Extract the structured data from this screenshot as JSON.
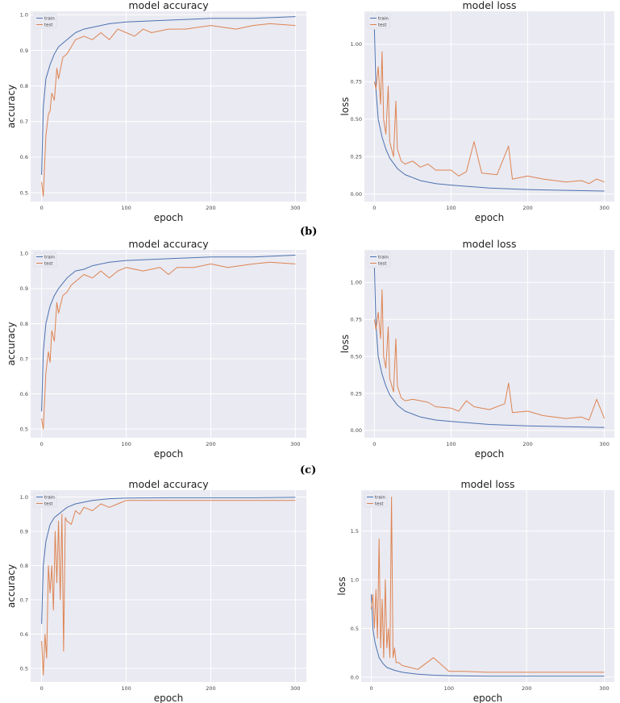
{
  "captions": {
    "b": "(b)",
    "c": "(c)"
  },
  "colors": {
    "train": "#4c72b0",
    "test": "#dd8452",
    "plot_bg": "#eaeaf2",
    "grid": "#ffffff"
  },
  "chart_data": [
    {
      "id": "a-accuracy",
      "type": "line",
      "title": "model accuracy",
      "xlabel": "epoch",
      "ylabel": "accuracy",
      "xlim": [
        -13,
        313
      ],
      "ylim": [
        0.475,
        1.01
      ],
      "xticks": [
        0,
        100,
        200,
        300
      ],
      "xtick_labels": [
        "0",
        "100",
        "200",
        "300"
      ],
      "yticks": [
        0.5,
        0.6,
        0.7,
        0.8,
        0.9,
        1.0
      ],
      "ytick_labels": [
        "0.5",
        "0.6",
        "0.7",
        "0.8",
        "0.9",
        "1.0"
      ],
      "legend": "upper-left",
      "grid": true,
      "series": [
        {
          "name": "train",
          "x": [
            0,
            2,
            5,
            10,
            15,
            20,
            30,
            40,
            50,
            60,
            80,
            100,
            150,
            200,
            250,
            300
          ],
          "y": [
            0.55,
            0.74,
            0.82,
            0.86,
            0.89,
            0.91,
            0.93,
            0.95,
            0.96,
            0.965,
            0.975,
            0.98,
            0.985,
            0.99,
            0.99,
            0.995
          ]
        },
        {
          "name": "test",
          "x": [
            0,
            2,
            5,
            8,
            10,
            12,
            15,
            18,
            20,
            25,
            30,
            35,
            40,
            50,
            60,
            70,
            80,
            90,
            100,
            110,
            120,
            130,
            150,
            170,
            200,
            230,
            250,
            270,
            300
          ],
          "y": [
            0.53,
            0.49,
            0.66,
            0.72,
            0.73,
            0.78,
            0.76,
            0.85,
            0.82,
            0.88,
            0.89,
            0.91,
            0.93,
            0.94,
            0.93,
            0.95,
            0.93,
            0.96,
            0.95,
            0.94,
            0.96,
            0.95,
            0.96,
            0.96,
            0.97,
            0.96,
            0.97,
            0.975,
            0.97
          ]
        }
      ]
    },
    {
      "id": "a-loss",
      "type": "line",
      "title": "model loss",
      "xlabel": "epoch",
      "ylabel": "loss",
      "xlim": [
        -13,
        313
      ],
      "ylim": [
        -0.05,
        1.22
      ],
      "xticks": [
        0,
        100,
        200,
        300
      ],
      "xtick_labels": [
        "0",
        "100",
        "200",
        "300"
      ],
      "yticks": [
        0,
        0.25,
        0.5,
        0.75,
        1.0
      ],
      "ytick_labels": [
        "0.00",
        "0.25",
        "0.50",
        "0.75",
        "1.00"
      ],
      "legend": "upper-left",
      "grid": true,
      "series": [
        {
          "name": "train",
          "x": [
            0,
            2,
            5,
            10,
            15,
            20,
            30,
            40,
            50,
            60,
            80,
            100,
            150,
            200,
            250,
            300
          ],
          "y": [
            1.1,
            0.7,
            0.5,
            0.38,
            0.3,
            0.24,
            0.17,
            0.13,
            0.11,
            0.09,
            0.07,
            0.06,
            0.04,
            0.03,
            0.025,
            0.02
          ]
        },
        {
          "name": "test",
          "x": [
            0,
            2,
            5,
            8,
            10,
            12,
            15,
            18,
            20,
            25,
            28,
            30,
            35,
            40,
            50,
            60,
            70,
            80,
            100,
            110,
            120,
            130,
            140,
            160,
            175,
            180,
            200,
            220,
            250,
            270,
            280,
            290,
            300
          ],
          "y": [
            0.75,
            0.7,
            0.85,
            0.6,
            0.95,
            0.5,
            0.4,
            0.72,
            0.35,
            0.25,
            0.62,
            0.3,
            0.22,
            0.2,
            0.22,
            0.18,
            0.2,
            0.16,
            0.16,
            0.12,
            0.15,
            0.35,
            0.14,
            0.13,
            0.32,
            0.1,
            0.12,
            0.1,
            0.08,
            0.09,
            0.07,
            0.1,
            0.08
          ]
        }
      ]
    },
    {
      "id": "b-accuracy",
      "type": "line",
      "title": "model accuracy",
      "xlabel": "epoch",
      "ylabel": "accuracy",
      "xlim": [
        -13,
        313
      ],
      "ylim": [
        0.475,
        1.01
      ],
      "xticks": [
        0,
        100,
        200,
        300
      ],
      "xtick_labels": [
        "0",
        "100",
        "200",
        "300"
      ],
      "yticks": [
        0.5,
        0.6,
        0.7,
        0.8,
        0.9,
        1.0
      ],
      "ytick_labels": [
        "0.5",
        "0.6",
        "0.7",
        "0.8",
        "0.9",
        "1.0"
      ],
      "legend": "upper-left",
      "grid": true,
      "series": [
        {
          "name": "train",
          "x": [
            0,
            2,
            5,
            10,
            15,
            20,
            30,
            40,
            50,
            60,
            80,
            100,
            150,
            200,
            250,
            300
          ],
          "y": [
            0.55,
            0.72,
            0.8,
            0.85,
            0.88,
            0.9,
            0.93,
            0.95,
            0.955,
            0.965,
            0.975,
            0.98,
            0.985,
            0.99,
            0.99,
            0.995
          ]
        },
        {
          "name": "test",
          "x": [
            0,
            2,
            5,
            8,
            10,
            12,
            15,
            18,
            20,
            25,
            30,
            35,
            40,
            50,
            60,
            70,
            80,
            90,
            100,
            120,
            140,
            150,
            160,
            180,
            200,
            220,
            250,
            270,
            300
          ],
          "y": [
            0.53,
            0.5,
            0.66,
            0.72,
            0.69,
            0.78,
            0.75,
            0.86,
            0.83,
            0.88,
            0.89,
            0.91,
            0.92,
            0.94,
            0.93,
            0.95,
            0.93,
            0.95,
            0.96,
            0.95,
            0.96,
            0.94,
            0.96,
            0.96,
            0.97,
            0.96,
            0.97,
            0.975,
            0.97
          ]
        }
      ]
    },
    {
      "id": "b-loss",
      "type": "line",
      "title": "model loss",
      "xlabel": "epoch",
      "ylabel": "loss",
      "xlim": [
        -13,
        313
      ],
      "ylim": [
        -0.05,
        1.22
      ],
      "xticks": [
        0,
        100,
        200,
        300
      ],
      "xtick_labels": [
        "0",
        "100",
        "200",
        "300"
      ],
      "yticks": [
        0,
        0.25,
        0.5,
        0.75,
        1.0
      ],
      "ytick_labels": [
        "0.00",
        "0.25",
        "0.50",
        "0.75",
        "1.00"
      ],
      "legend": "upper-left",
      "grid": true,
      "series": [
        {
          "name": "train",
          "x": [
            0,
            2,
            5,
            10,
            15,
            20,
            30,
            40,
            50,
            60,
            80,
            100,
            150,
            200,
            250,
            300
          ],
          "y": [
            1.1,
            0.72,
            0.5,
            0.38,
            0.3,
            0.24,
            0.17,
            0.13,
            0.11,
            0.09,
            0.07,
            0.06,
            0.04,
            0.03,
            0.025,
            0.02
          ]
        },
        {
          "name": "test",
          "x": [
            0,
            2,
            5,
            8,
            10,
            12,
            15,
            18,
            20,
            25,
            28,
            30,
            35,
            40,
            50,
            60,
            70,
            80,
            100,
            110,
            120,
            130,
            150,
            170,
            175,
            180,
            200,
            220,
            250,
            270,
            280,
            290,
            300
          ],
          "y": [
            0.75,
            0.68,
            0.8,
            0.62,
            0.95,
            0.5,
            0.42,
            0.7,
            0.35,
            0.26,
            0.62,
            0.3,
            0.22,
            0.2,
            0.21,
            0.2,
            0.19,
            0.16,
            0.15,
            0.13,
            0.2,
            0.16,
            0.14,
            0.18,
            0.32,
            0.12,
            0.13,
            0.1,
            0.08,
            0.09,
            0.07,
            0.21,
            0.08
          ]
        }
      ]
    },
    {
      "id": "c-accuracy",
      "type": "line",
      "title": "model accuracy",
      "xlabel": "epoch",
      "ylabel": "accuracy",
      "xlim": [
        -13,
        313
      ],
      "ylim": [
        0.46,
        1.02
      ],
      "xticks": [
        0,
        100,
        200,
        300
      ],
      "xtick_labels": [
        "0",
        "100",
        "200",
        "300"
      ],
      "yticks": [
        0.5,
        0.6,
        0.7,
        0.8,
        0.9,
        1.0
      ],
      "ytick_labels": [
        "0.5",
        "0.6",
        "0.7",
        "0.8",
        "0.9",
        "1.0"
      ],
      "legend": "upper-left",
      "grid": true,
      "series": [
        {
          "name": "train",
          "x": [
            0,
            2,
            5,
            8,
            10,
            15,
            20,
            30,
            40,
            50,
            60,
            80,
            100,
            150,
            200,
            250,
            300
          ],
          "y": [
            0.63,
            0.8,
            0.87,
            0.9,
            0.92,
            0.94,
            0.95,
            0.97,
            0.98,
            0.985,
            0.99,
            0.995,
            0.997,
            0.998,
            0.998,
            0.998,
            0.999
          ]
        },
        {
          "name": "test",
          "x": [
            0,
            2,
            4,
            6,
            8,
            10,
            12,
            14,
            16,
            18,
            20,
            22,
            24,
            26,
            28,
            30,
            35,
            40,
            45,
            50,
            60,
            70,
            80,
            90,
            100,
            120,
            150,
            200,
            250,
            300
          ],
          "y": [
            0.58,
            0.48,
            0.6,
            0.53,
            0.8,
            0.72,
            0.8,
            0.67,
            0.9,
            0.75,
            0.93,
            0.7,
            0.95,
            0.55,
            0.94,
            0.93,
            0.92,
            0.96,
            0.95,
            0.97,
            0.96,
            0.98,
            0.97,
            0.98,
            0.99,
            0.99,
            0.99,
            0.99,
            0.99,
            0.99
          ]
        }
      ]
    },
    {
      "id": "c-loss",
      "type": "line",
      "title": "model loss",
      "xlabel": "epoch",
      "ylabel": "loss",
      "xlim": [
        -13,
        313
      ],
      "ylim": [
        -0.05,
        1.92
      ],
      "xticks": [
        0,
        100,
        200,
        300
      ],
      "xtick_labels": [
        "0",
        "100",
        "200",
        "300"
      ],
      "yticks": [
        0,
        0.5,
        1.0,
        1.5
      ],
      "ytick_labels": [
        "0.0",
        "0.5",
        "1.0",
        "1.5"
      ],
      "legend": "upper-left",
      "grid": true,
      "series": [
        {
          "name": "train",
          "x": [
            0,
            2,
            5,
            10,
            15,
            20,
            30,
            40,
            50,
            60,
            80,
            100,
            150,
            200,
            250,
            300
          ],
          "y": [
            0.85,
            0.5,
            0.35,
            0.2,
            0.14,
            0.1,
            0.07,
            0.05,
            0.04,
            0.03,
            0.02,
            0.015,
            0.01,
            0.01,
            0.01,
            0.01
          ]
        },
        {
          "name": "test",
          "x": [
            0,
            2,
            4,
            6,
            8,
            10,
            12,
            14,
            16,
            18,
            20,
            22,
            24,
            26,
            28,
            30,
            32,
            35,
            40,
            50,
            60,
            80,
            100,
            120,
            150,
            200,
            250,
            300
          ],
          "y": [
            0.7,
            0.85,
            0.5,
            0.9,
            0.4,
            1.42,
            0.3,
            0.8,
            0.2,
            1.0,
            0.3,
            0.5,
            0.2,
            1.85,
            0.2,
            0.3,
            0.15,
            0.15,
            0.12,
            0.1,
            0.08,
            0.2,
            0.06,
            0.06,
            0.05,
            0.05,
            0.05,
            0.05
          ]
        }
      ]
    }
  ]
}
